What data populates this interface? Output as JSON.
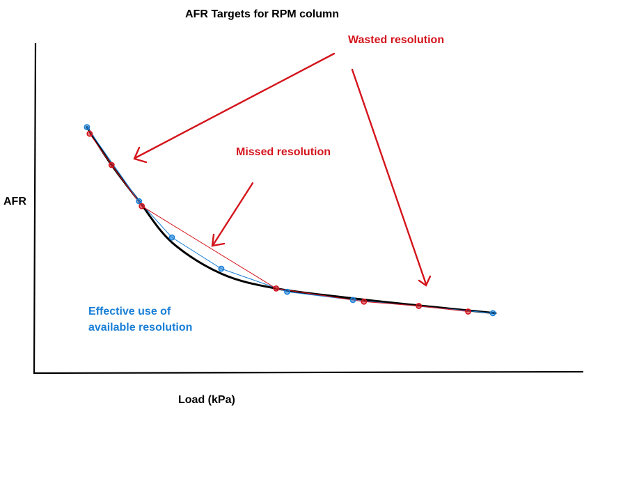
{
  "chart_data": {
    "type": "line",
    "title": "AFR Targets for RPM column",
    "xlabel": "Load (kPa)",
    "ylabel": "AFR",
    "grid": false,
    "legend": "none",
    "xlim": [
      0,
      100
    ],
    "ylim": [
      0,
      100
    ],
    "curve": {
      "name": "",
      "color": "#000000",
      "points": [
        [
          9.5,
          74.5
        ],
        [
          14,
          63
        ],
        [
          19,
          52
        ],
        [
          25,
          39.5
        ],
        [
          34,
          30
        ],
        [
          44,
          25.5
        ],
        [
          58,
          22.5
        ],
        [
          72,
          20
        ],
        [
          84,
          18
        ]
      ]
    },
    "series": [
      {
        "name": "",
        "color": "#1a7fd6",
        "x": [
          9.5,
          19,
          25,
          34,
          46,
          58,
          83.5
        ],
        "y": [
          74.5,
          52,
          41,
          31.5,
          24.5,
          22,
          18
        ]
      },
      {
        "name": "",
        "color": "#d4141c",
        "x": [
          10,
          14,
          19.5,
          44,
          60,
          70,
          79
        ],
        "y": [
          72.5,
          63,
          50.5,
          25.5,
          21.5,
          20.2,
          18.5
        ]
      }
    ],
    "annotations": [
      {
        "id": "wasted",
        "text": "Wasted resolution",
        "color": "#d4141c"
      },
      {
        "id": "missed",
        "text": "Missed resolution",
        "color": "#d4141c"
      },
      {
        "id": "effective",
        "lines": [
          "Effective use of",
          "available resolution"
        ],
        "color": "#1a7fd6"
      }
    ]
  }
}
